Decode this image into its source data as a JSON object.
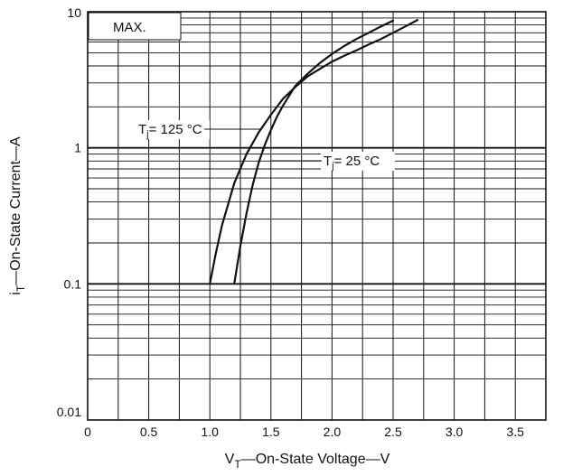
{
  "chart_data": {
    "type": "line",
    "box_label": "MAX.",
    "xlabel": {
      "main": "V",
      "sub": "T",
      "rest": "—On-State Voltage—V"
    },
    "ylabel": {
      "main": "i",
      "sub": "T",
      "rest": "—On-State Current—A"
    },
    "x_scale": "linear",
    "y_scale": "log",
    "xlim": [
      0,
      3.75
    ],
    "ylim": [
      0.01,
      10
    ],
    "x_ticks": [
      0,
      0.5,
      1.0,
      1.5,
      2.0,
      2.5,
      3.0,
      3.5
    ],
    "x_tick_labels": [
      "0",
      "0.5",
      "1.0",
      "1.5",
      "2.0",
      "2.5",
      "3.0",
      "3.5"
    ],
    "y_ticks": [
      0.01,
      0.1,
      1,
      10
    ],
    "y_tick_labels": [
      "0.01",
      "0.1",
      "1",
      "10"
    ],
    "grid": true,
    "series": [
      {
        "name": "Tj = 125 °C",
        "label": {
          "main": "T",
          "sub": "j",
          "rest": "= 125 °C"
        },
        "color": "#111111",
        "x": [
          1.0,
          1.05,
          1.1,
          1.2,
          1.3,
          1.4,
          1.5,
          1.6,
          1.7,
          1.8,
          1.9,
          2.0,
          2.1,
          2.2,
          2.3,
          2.4,
          2.5,
          2.6,
          2.7
        ],
        "y": [
          0.1,
          0.17,
          0.27,
          0.55,
          0.9,
          1.3,
          1.75,
          2.3,
          2.8,
          3.35,
          3.8,
          4.3,
          4.75,
          5.2,
          5.75,
          6.3,
          7.0,
          7.8,
          8.7
        ]
      },
      {
        "name": "Tj = 25 °C",
        "label": {
          "main": "T",
          "sub": "j",
          "rest": "= 25 °C"
        },
        "color": "#111111",
        "x": [
          1.2,
          1.25,
          1.3,
          1.35,
          1.4,
          1.45,
          1.5,
          1.55,
          1.6,
          1.7,
          1.8,
          1.9,
          2.0,
          2.1,
          2.2,
          2.3,
          2.4,
          2.5
        ],
        "y": [
          0.1,
          0.19,
          0.33,
          0.53,
          0.78,
          1.05,
          1.35,
          1.7,
          2.05,
          2.85,
          3.5,
          4.2,
          4.9,
          5.6,
          6.3,
          7.0,
          7.8,
          8.6
        ]
      }
    ]
  }
}
